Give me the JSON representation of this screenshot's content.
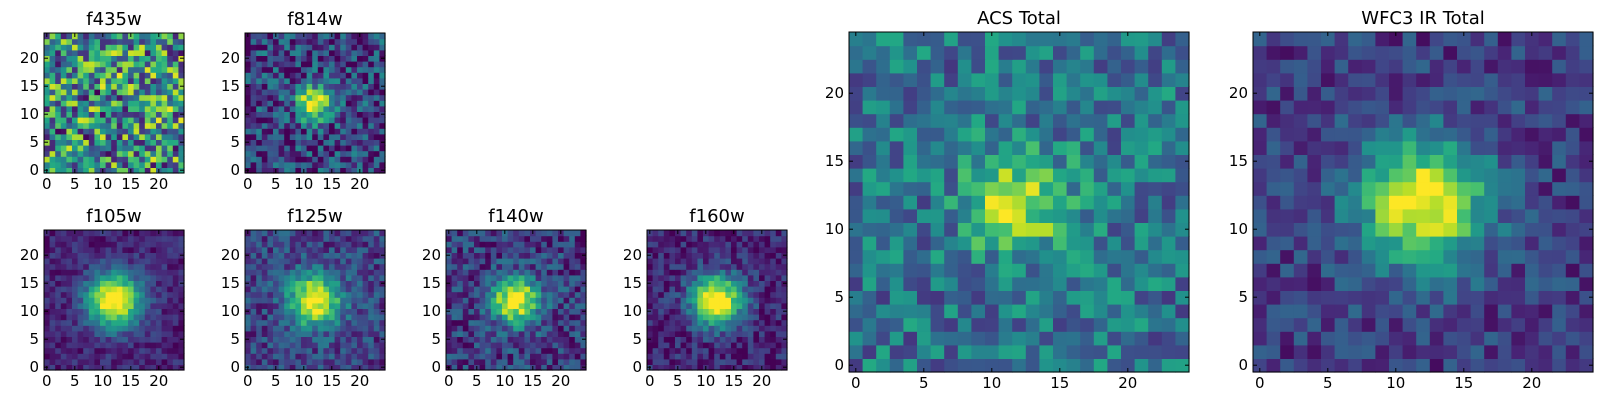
{
  "chart_data": [
    {
      "type": "heatmap",
      "title": "f435w",
      "x_ticks": [
        0,
        5,
        10,
        15,
        20
      ],
      "y_ticks": [
        0,
        5,
        10,
        15,
        20
      ],
      "xlim": [
        -0.5,
        24.5
      ],
      "ylim": [
        -0.5,
        24.5
      ],
      "grid_size": 25,
      "source_center": null,
      "colormap": "viridis",
      "grid": false
    },
    {
      "type": "heatmap",
      "title": "f814w",
      "x_ticks": [
        0,
        5,
        10,
        15,
        20
      ],
      "y_ticks": [
        0,
        5,
        10,
        15,
        20
      ],
      "xlim": [
        -0.5,
        24.5
      ],
      "ylim": [
        -0.5,
        24.5
      ],
      "grid_size": 25,
      "source_center": [
        12,
        12
      ],
      "colormap": "viridis",
      "grid": false
    },
    {
      "type": "heatmap",
      "title": "f105w",
      "x_ticks": [
        0,
        5,
        10,
        15,
        20
      ],
      "y_ticks": [
        0,
        5,
        10,
        15,
        20
      ],
      "xlim": [
        -0.5,
        24.5
      ],
      "ylim": [
        -0.5,
        24.5
      ],
      "grid_size": 25,
      "source_center": [
        12,
        12
      ],
      "colormap": "viridis",
      "grid": false
    },
    {
      "type": "heatmap",
      "title": "f125w",
      "x_ticks": [
        0,
        5,
        10,
        15,
        20
      ],
      "y_ticks": [
        0,
        5,
        10,
        15,
        20
      ],
      "xlim": [
        -0.5,
        24.5
      ],
      "ylim": [
        -0.5,
        24.5
      ],
      "grid_size": 25,
      "source_center": [
        12,
        12
      ],
      "colormap": "viridis",
      "grid": false
    },
    {
      "type": "heatmap",
      "title": "f140w",
      "x_ticks": [
        0,
        5,
        10,
        15,
        20
      ],
      "y_ticks": [
        0,
        5,
        10,
        15,
        20
      ],
      "xlim": [
        -0.5,
        24.5
      ],
      "ylim": [
        -0.5,
        24.5
      ],
      "grid_size": 25,
      "source_center": [
        12,
        12
      ],
      "colormap": "viridis",
      "grid": false
    },
    {
      "type": "heatmap",
      "title": "f160w",
      "x_ticks": [
        0,
        5,
        10,
        15,
        20
      ],
      "y_ticks": [
        0,
        5,
        10,
        15,
        20
      ],
      "xlim": [
        -0.5,
        24.5
      ],
      "ylim": [
        -0.5,
        24.5
      ],
      "grid_size": 25,
      "source_center": [
        12,
        12
      ],
      "colormap": "viridis",
      "grid": false
    },
    {
      "type": "heatmap",
      "title": "ACS Total",
      "x_ticks": [
        0,
        5,
        10,
        15,
        20
      ],
      "y_ticks": [
        0,
        5,
        10,
        15,
        20
      ],
      "xlim": [
        -0.5,
        24.5
      ],
      "ylim": [
        -0.5,
        24.5
      ],
      "grid_size": 25,
      "source_center": [
        12,
        12
      ],
      "colormap": "viridis",
      "grid": false
    },
    {
      "type": "heatmap",
      "title": "WFC3 IR Total",
      "x_ticks": [
        0,
        5,
        10,
        15,
        20
      ],
      "y_ticks": [
        0,
        5,
        10,
        15,
        20
      ],
      "xlim": [
        -0.5,
        24.5
      ],
      "ylim": [
        -0.5,
        24.5
      ],
      "grid_size": 25,
      "source_center": [
        12,
        12
      ],
      "colormap": "viridis",
      "grid": false
    }
  ]
}
